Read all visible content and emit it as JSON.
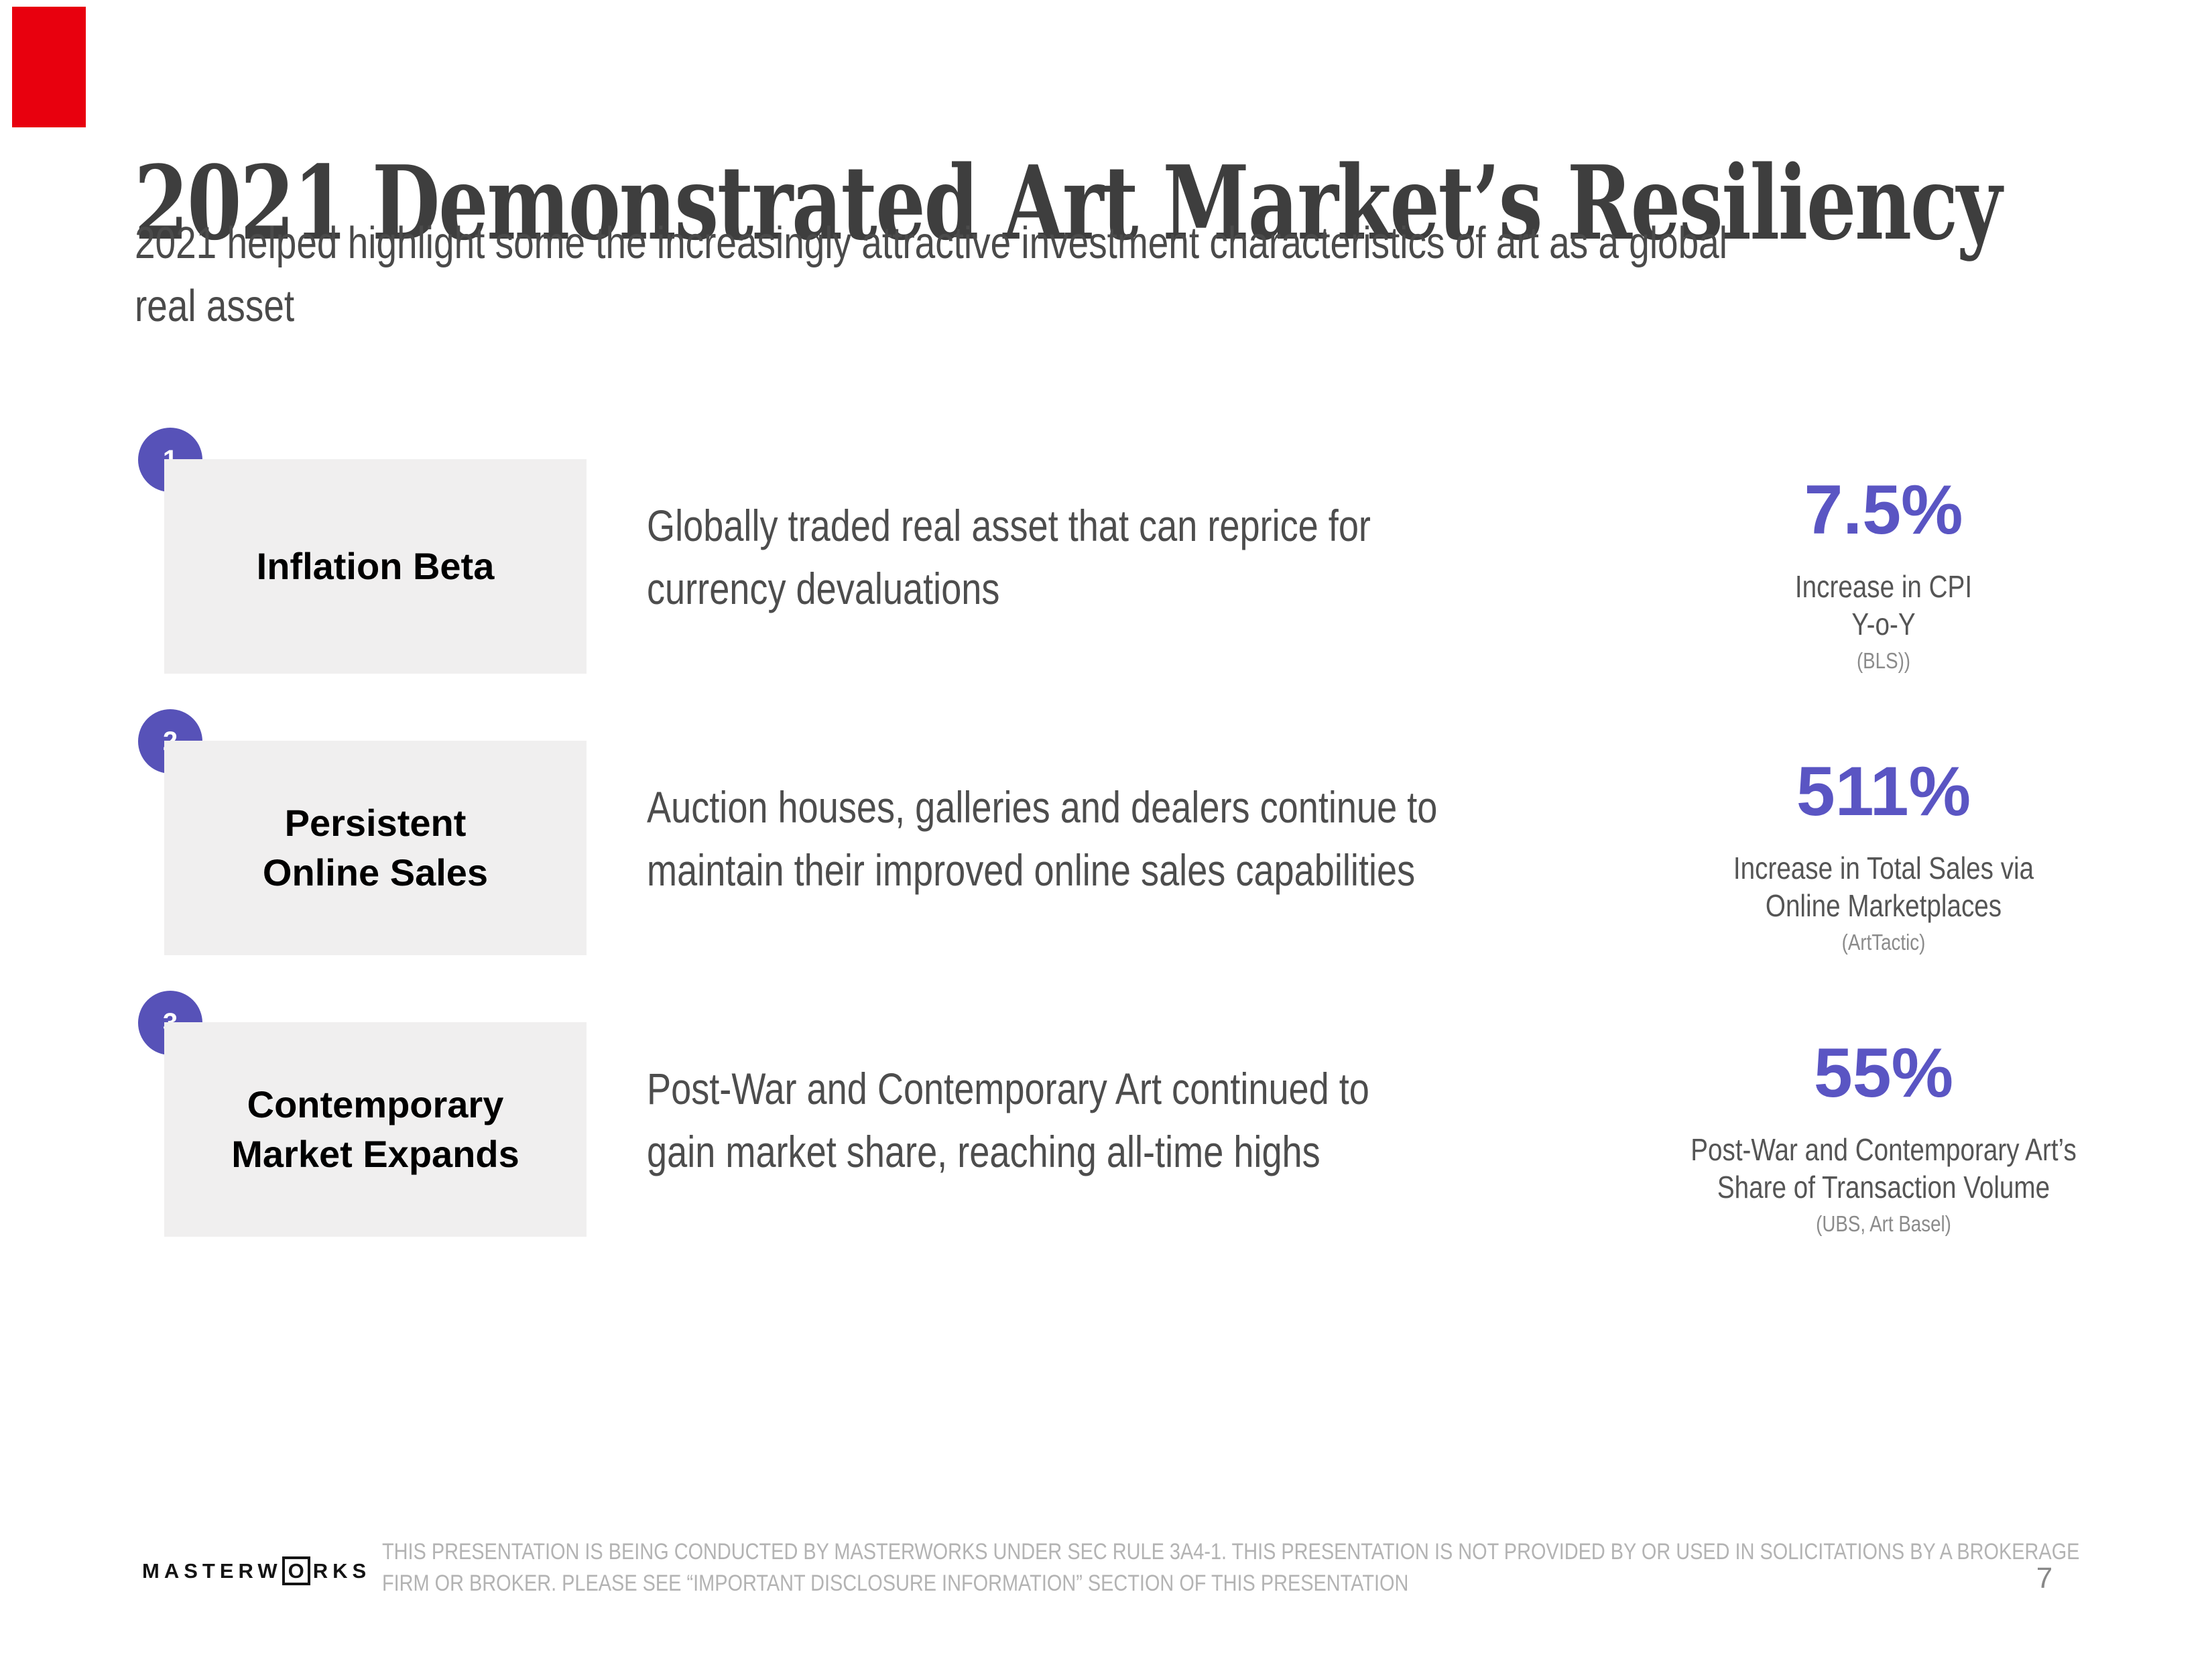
{
  "slide": {
    "title": "2021 Demonstrated Art Market’s Resiliency",
    "subtitle": "2021 helped highlight some the increasingly attractive investment characteristics of art as a global\nreal asset",
    "rows": [
      {
        "number": "1",
        "label": "Inflation Beta",
        "description": "Globally traded real asset that can reprice for\ncurrency devaluations",
        "stat_value": "7.5%",
        "stat_caption": "Increase in CPI\nY-o-Y",
        "stat_source": "(BLS))"
      },
      {
        "number": "2",
        "label": "Persistent\nOnline Sales",
        "description": "Auction houses, galleries and dealers continue to\nmaintain their improved online sales capabilities",
        "stat_value": "511%",
        "stat_caption": "Increase in Total Sales via\nOnline Marketplaces",
        "stat_source": "(ArtTactic)"
      },
      {
        "number": "3",
        "label": "Contemporary\nMarket Expands",
        "description": "Post-War and Contemporary Art continued to\ngain market share, reaching all-time highs",
        "stat_value": "55%",
        "stat_caption": "Post-War and Contemporary Art’s\nShare of Transaction Volume",
        "stat_source": "(UBS, Art Basel)"
      }
    ],
    "footer": {
      "logo_left": "MASTERW",
      "logo_o": "O",
      "logo_right": "RKS",
      "disclaimer": "THIS PRESENTATION  IS BEING CONDUCTED BY MASTERWORKS UNDER SEC RULE 3A4-1. THIS PRESENTATION  IS NOT PROVIDED BY OR USED IN SOLICITATIONS BY A BROKERAGE\nFIRM OR BROKER. PLEASE SEE “IMPORTANT DISCLOSURE INFORMATION” SECTION OF THIS PRESENTATION",
      "page_number": "7"
    },
    "colors": {
      "accent_stat": "#5a55c3",
      "circle": "#5752b8",
      "label_box_bg": "#f0efef",
      "marker_red": "#e8000e",
      "title_gray": "#3e3e3e",
      "disclaimer_gray": "#b3b3b3"
    }
  }
}
